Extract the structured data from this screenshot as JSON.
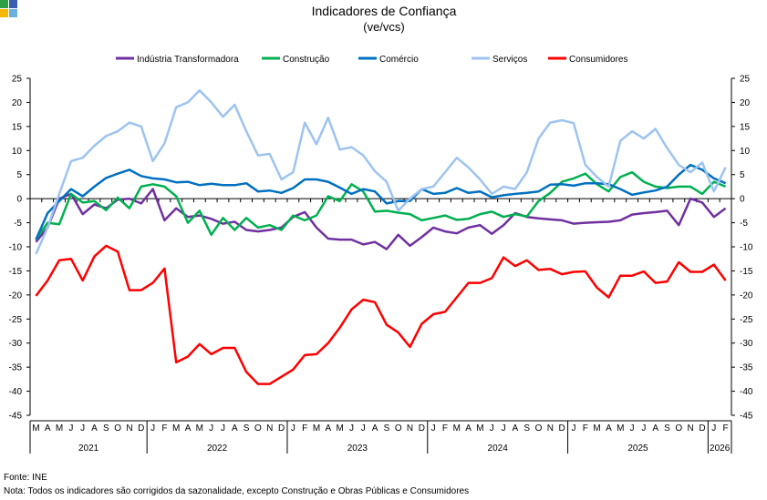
{
  "chart_data": {
    "type": "line",
    "title": "Indicadores de Confiança",
    "subtitle": "(ve/vcs)",
    "legend_position": "top",
    "grid": false,
    "ylim": [
      -45,
      25
    ],
    "yticks": [
      25,
      20,
      15,
      10,
      5,
      0,
      -5,
      -10,
      -15,
      -20,
      -25,
      -30,
      -35,
      -40,
      -45
    ],
    "month_labels": [
      "M",
      "A",
      "M",
      "J",
      "J",
      "A",
      "S",
      "O",
      "N",
      "D",
      "J",
      "F",
      "M",
      "A",
      "M",
      "J",
      "J",
      "A",
      "S",
      "O",
      "N",
      "D",
      "J",
      "F",
      "M",
      "A",
      "M",
      "J",
      "J",
      "A",
      "S",
      "O",
      "N",
      "D",
      "J",
      "F",
      "M",
      "A",
      "M",
      "J",
      "J",
      "A",
      "S",
      "O",
      "N",
      "D",
      "J",
      "F",
      "M",
      "A",
      "M",
      "J",
      "J",
      "A",
      "S",
      "O",
      "N",
      "D",
      "J",
      "F"
    ],
    "years": [
      {
        "label": "2021",
        "months": 10
      },
      {
        "label": "2022",
        "months": 12
      },
      {
        "label": "2023",
        "months": 12
      },
      {
        "label": "2024",
        "months": 12
      },
      {
        "label": "2025",
        "months": 12
      },
      {
        "label": "2026",
        "months": 2
      }
    ],
    "series": [
      {
        "name": "Indústria Transformadora",
        "color": "#7030a0",
        "values": [
          -9,
          -6,
          0,
          1,
          -3.2,
          -1.2,
          -2,
          -0.2,
          0,
          -1,
          2,
          -4.5,
          -2,
          -3.8,
          -3.5,
          -4.2,
          -5.2,
          -4.8,
          -6.5,
          -6.8,
          -6.5,
          -6,
          -3.8,
          -2.8,
          -6,
          -8.3,
          -8.5,
          -8.5,
          -9.5,
          -9,
          -10.5,
          -7.5,
          -9.8,
          -8,
          -6,
          -6.8,
          -7.2,
          -6,
          -5.5,
          -7.3,
          -5.5,
          -3,
          -3.8,
          -4.1,
          -4.3,
          -4.5,
          -5.2,
          -5,
          -4.9,
          -4.8,
          -4.5,
          -3.3,
          -3,
          -2.8,
          -2.5,
          -5.5,
          0,
          -0.8,
          -3.8,
          -2
        ]
      },
      {
        "name": "Construção",
        "color": "#00b050",
        "values": [
          -8.5,
          -5,
          -5.3,
          1,
          -0.8,
          -0.5,
          -2.4,
          0.2,
          -2,
          2.5,
          3,
          2.5,
          0.5,
          -5,
          -2.5,
          -7.5,
          -4,
          -6.5,
          -4,
          -6,
          -5.5,
          -6.5,
          -3.5,
          -4.5,
          -3.5,
          0.5,
          -0.5,
          3,
          1.5,
          -2.7,
          -2.5,
          -2.9,
          -3.2,
          -4.5,
          -4,
          -3.5,
          -4.4,
          -4.2,
          -3.2,
          -2.7,
          -3.8,
          -3.2,
          -3.7,
          -0.5,
          1.2,
          3.5,
          4.2,
          5.2,
          3,
          1.5,
          4.5,
          5.5,
          3.5,
          2.5,
          2.2,
          2.5,
          2.5,
          1,
          3.5,
          2.5
        ]
      },
      {
        "name": "Comércio",
        "color": "#0070c0",
        "values": [
          -8.5,
          -3,
          -0.5,
          2,
          0.5,
          2.5,
          4.3,
          5.2,
          6,
          4.7,
          4.2,
          4,
          3.4,
          3.5,
          2.8,
          3.1,
          2.8,
          2.8,
          3.2,
          1.5,
          1.7,
          1.2,
          2.2,
          4,
          4,
          3.5,
          2.3,
          1,
          2,
          1.5,
          -1,
          -0.5,
          -0.5,
          2,
          1,
          1.2,
          2.2,
          1.2,
          1.5,
          0.3,
          0.7,
          1,
          1.2,
          1.5,
          2.9,
          3,
          2.7,
          3.2,
          3.2,
          3,
          2,
          0.8,
          1.3,
          1.7,
          2.5,
          5,
          7,
          6,
          4.2,
          3.2
        ]
      },
      {
        "name": "Serviços",
        "color": "#9dc3f0",
        "values": [
          -11.5,
          -6,
          1,
          7.8,
          8.5,
          11,
          13,
          14,
          15.8,
          15,
          7.8,
          11.5,
          19,
          20,
          22.5,
          20,
          17,
          19.5,
          14,
          9,
          9.3,
          4,
          5.5,
          15.8,
          11.3,
          16.8,
          10.2,
          10.7,
          9,
          5.7,
          3.5,
          -2.5,
          0,
          2,
          2.5,
          5.5,
          8.5,
          6.5,
          4,
          1,
          2.5,
          2,
          5.5,
          12.5,
          15.8,
          16.3,
          15.7,
          7,
          4.5,
          2.5,
          12,
          14,
          12.5,
          14.5,
          10.5,
          7,
          5.5,
          7.5,
          1.5,
          6.5
        ]
      },
      {
        "name": "Consumidores",
        "color": "#ff0000",
        "values": [
          -20.2,
          -17,
          -12.8,
          -12.5,
          -17,
          -12,
          -9.8,
          -11,
          -19,
          -19,
          -17.5,
          -14.5,
          -34,
          -32.8,
          -30.2,
          -32.3,
          -31,
          -31,
          -36,
          -38.5,
          -38.5,
          -37,
          -35.5,
          -32.5,
          -32.3,
          -30,
          -26.8,
          -23,
          -21,
          -21.5,
          -26.2,
          -27.8,
          -30.8,
          -26,
          -24,
          -23.5,
          -20.5,
          -17.5,
          -17.5,
          -16.5,
          -12.2,
          -14,
          -12.8,
          -14.8,
          -14.6,
          -15.7,
          -15.2,
          -15.1,
          -18.5,
          -20.5,
          -16,
          -16,
          -15.1,
          -17.5,
          -17.2,
          -13.2,
          -15.2,
          -15.2,
          -13.7,
          -17
        ]
      }
    ]
  },
  "logo_colors": [
    "#2e9e47",
    "#3a5fb0",
    "#f5b800",
    "#6cb0e0"
  ],
  "footer": {
    "source": "Fonte: INE",
    "note": "Nota: Todos os indicadores são corrigidos da sazonalidade, excepto Construção e Obras Públicas e Consumidores"
  }
}
